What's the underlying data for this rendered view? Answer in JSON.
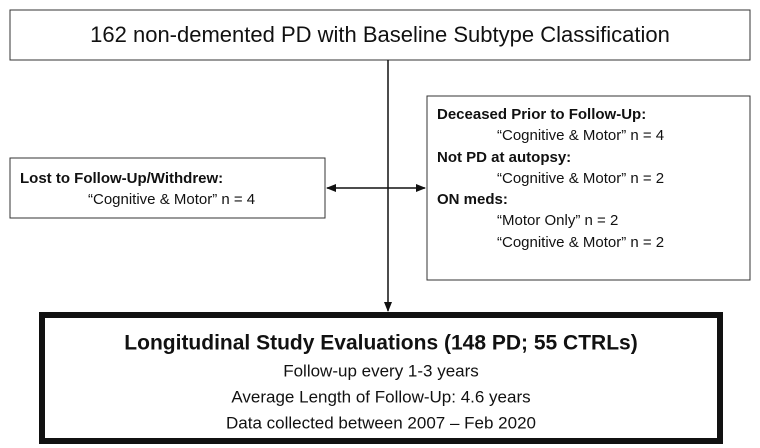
{
  "nodes": [
    {
      "label": "162 non-demented PD with Baseline Subtype Classification"
    },
    {
      "title": "Lost to Follow-Up/Withdrew:",
      "items": [
        "“Cognitive & Motor” n = 4"
      ]
    },
    {
      "sections": [
        {
          "title": "Deceased Prior to Follow-Up:",
          "items": [
            "“Cognitive & Motor” n = 4"
          ]
        },
        {
          "title": "Not PD at autopsy:",
          "items": [
            "“Cognitive & Motor” n = 2"
          ]
        },
        {
          "title": "ON meds:",
          "items": [
            "“Motor Only” n = 2",
            "“Cognitive & Motor” n = 2"
          ]
        }
      ]
    },
    {
      "title": "Longitudinal Study Evaluations (148 PD; 55 CTRLs)",
      "lines": [
        "Follow-up every 1-3 years",
        "Average Length of Follow-Up: 4.6 years",
        "Data collected between 2007 – Feb 2020"
      ]
    }
  ]
}
